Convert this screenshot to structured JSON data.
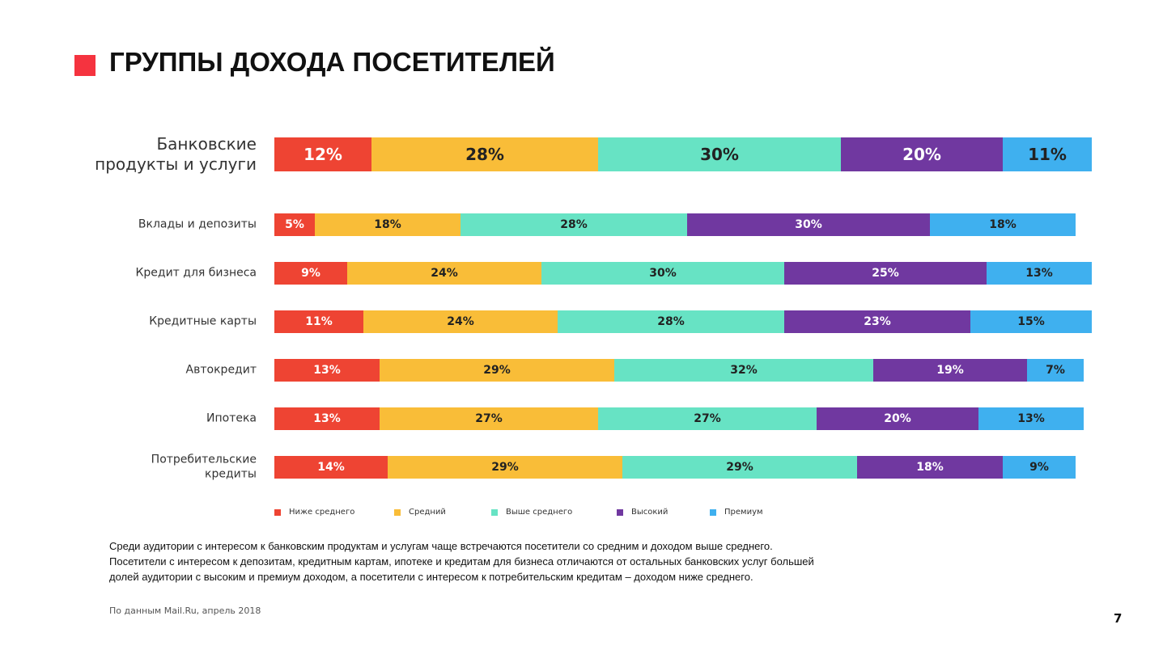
{
  "chart_data": {
    "type": "stacked-bar-horizontal",
    "title": "ГРУППЫ ДОХОДА ПОСЕТИТЕЛЕЙ",
    "categories": [
      "Банковские продукты и услуги",
      "Вклады и депозиты",
      "Кредит для бизнеса",
      "Кредитные карты",
      "Автокредит",
      "Ипотека",
      "Потребительские кредиты"
    ],
    "series": [
      {
        "name": "Ниже среднего",
        "color": "#ee4433",
        "label_color": "#ffffff",
        "values": [
          12,
          5,
          9,
          11,
          13,
          13,
          14
        ],
        "value_labels": [
          "12%",
          "5%",
          "9%",
          "11%",
          "13%",
          "13%",
          "14%"
        ]
      },
      {
        "name": "Средний",
        "color": "#f9bd38",
        "label_color": "#222222",
        "values": [
          28,
          18,
          24,
          24,
          29,
          27,
          29
        ],
        "value_labels": [
          "28%",
          "18%",
          "24%",
          "24%",
          "29%",
          "27%",
          "29%"
        ]
      },
      {
        "name": "Выше среднего",
        "color": "#67e3c4",
        "label_color": "#222222",
        "values": [
          30,
          28,
          30,
          28,
          32,
          27,
          29
        ],
        "value_labels": [
          "30%",
          "28%",
          "30%",
          "28%",
          "32%",
          "27%",
          "29%"
        ]
      },
      {
        "name": "Высокий",
        "color": "#7038a0",
        "label_color": "#ffffff",
        "values": [
          20,
          30,
          25,
          23,
          19,
          20,
          18
        ],
        "value_labels": [
          "20%",
          "30%",
          "25%",
          "23%",
          "19%",
          "20%",
          "18%"
        ]
      },
      {
        "name": "Премиум",
        "color": "#3fb0ef",
        "label_color": "#222222",
        "values": [
          11,
          18,
          13,
          15,
          7,
          13,
          9
        ],
        "value_labels": [
          "11%",
          "18%",
          "13%",
          "15%",
          "7%",
          "13%",
          "9%"
        ]
      }
    ],
    "xlim": [
      0,
      101
    ],
    "caption": [
      "Среди аудитории с интересом к банковским продуктам и услугам чаще встречаются посетители со средним и доходом выше среднего.",
      "Посетители с интересом к депозитам, кредитным картам, ипотеке и кредитам для бизнеса отличаются от остальных банковских услуг большей",
      "долей аудитории с высоким и премиум доходом, а посетители с интересом к потребительским кредитам – доходом ниже среднего."
    ],
    "source": "По данным Mail.Ru, апрель 2018",
    "page_number": "7"
  }
}
